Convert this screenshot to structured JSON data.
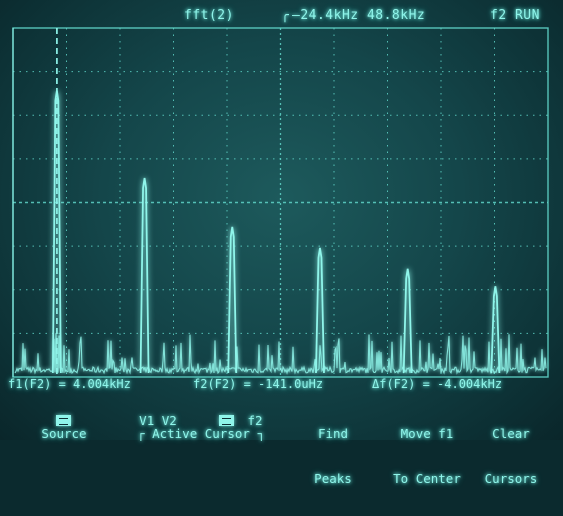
{
  "header": {
    "title": "fft(2)",
    "timebase": "24.4kHz 48.8kHz",
    "status": "f2 RUN"
  },
  "measurements": {
    "f1": "f1(F2) = 4.004kHz",
    "f2": "f2(F2) = -141.0uHz",
    "df": "Δf(F2) = -4.004kHz"
  },
  "softkeys": {
    "source_label": "Source",
    "active_cursor_label": "Active Cursor",
    "cursor_v1v2": "V1 V2",
    "cursor_f2": "f2",
    "find_peaks_line1": "Find",
    "find_peaks_line2": "Peaks",
    "move_f1_line1": "Move f1",
    "move_f1_line2": "To Center",
    "clear_line1": "Clear",
    "clear_line2": "Cursors"
  },
  "colors": {
    "trace": "#8ff5ea",
    "grid": "#5fd4c8",
    "background": "#14464a"
  },
  "chart_data": {
    "type": "line",
    "title": "fft(2)",
    "x_range_khz": [
      0,
      48.8
    ],
    "grid": true,
    "cursors": {
      "f1_khz": 4.004,
      "f2_khz": 0
    },
    "peaks": [
      {
        "x_khz": 4.0,
        "level": 0.82
      },
      {
        "x_khz": 12.0,
        "level": 0.57
      },
      {
        "x_khz": 20.0,
        "level": 0.43
      },
      {
        "x_khz": 28.0,
        "level": 0.37
      },
      {
        "x_khz": 36.0,
        "level": 0.31
      },
      {
        "x_khz": 44.0,
        "level": 0.26
      }
    ]
  }
}
